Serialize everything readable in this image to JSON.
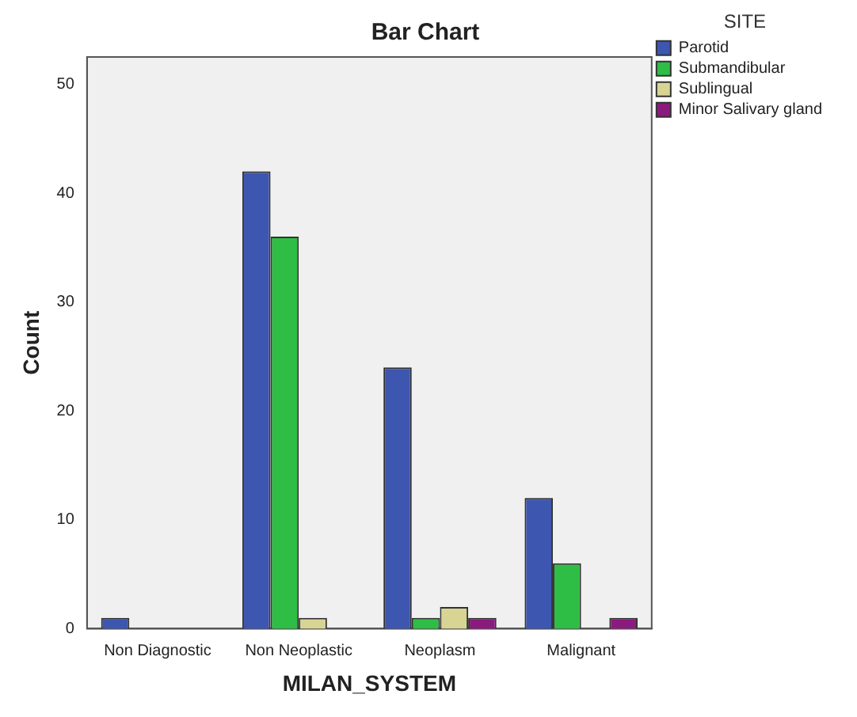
{
  "chart_data": {
    "type": "bar",
    "title": "Bar Chart",
    "xlabel": "MILAN_SYSTEM",
    "ylabel": "Count",
    "legend_title": "SITE",
    "legend": "top right",
    "grid": false,
    "categories": [
      "Non Diagnostic",
      "Non Neoplastic",
      "Neoplasm",
      "Malignant"
    ],
    "series": [
      {
        "name": "Parotid",
        "color": "#3d56b0",
        "values": [
          1,
          42,
          24,
          12
        ]
      },
      {
        "name": "Submandibular",
        "color": "#2ebd45",
        "values": [
          0,
          36,
          1,
          6
        ]
      },
      {
        "name": "Sublingual",
        "color": "#d8d494",
        "values": [
          0,
          1,
          2,
          0
        ]
      },
      {
        "name": "Minor Salivary gland",
        "color": "#8a1a7e",
        "values": [
          0,
          0,
          1,
          1
        ]
      }
    ],
    "ylim": [
      0,
      52.5
    ],
    "yticks": [
      0,
      10,
      20,
      30,
      40,
      50
    ]
  }
}
